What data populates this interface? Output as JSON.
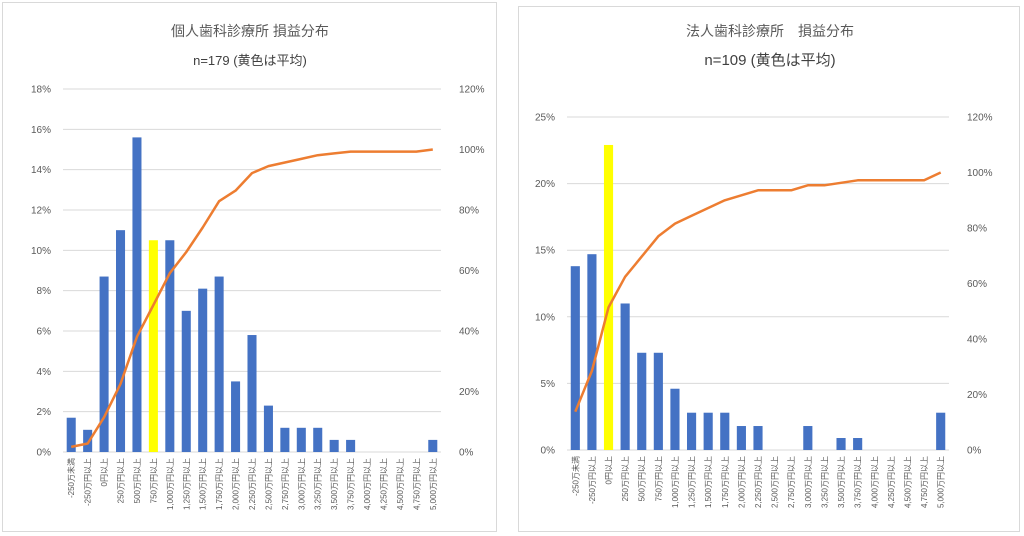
{
  "chart_data": [
    {
      "type": "bar",
      "title": "個人歯科診療所 損益分布",
      "subtitle": "n=179 (黄色は平均)",
      "categories": [
        "-250万未満",
        "-250万円以上",
        "0円以上",
        "250万円以上",
        "500万円以上",
        "750万円以上",
        "1,000万円以上",
        "1,250万円以上",
        "1,500万円以上",
        "1,750万円以上",
        "2,000万円以上",
        "2,250万円以上",
        "2,500万円以上",
        "2,750万円以上",
        "3,000万円以上",
        "3,250万円以上",
        "3,500万円以上",
        "3,750万円以上",
        "4,000万円以上",
        "4,250万円以上",
        "4,500万円以上",
        "4,750万円以上",
        "5,000万円以上"
      ],
      "series": [
        {
          "kind": "bar",
          "values": [
            1.7,
            1.1,
            8.7,
            11.0,
            15.6,
            10.5,
            10.5,
            7.0,
            8.1,
            8.7,
            3.5,
            5.8,
            2.3,
            1.2,
            1.2,
            1.2,
            0.6,
            0.6,
            0,
            0,
            0,
            0,
            0.6
          ]
        },
        {
          "kind": "line",
          "axis": "right",
          "values": [
            1.7,
            2.8,
            11.5,
            22.5,
            38.1,
            48.6,
            59.1,
            66.1,
            74.2,
            82.9,
            86.4,
            92.2,
            94.5,
            95.7,
            96.9,
            98.1,
            98.7,
            99.3,
            99.3,
            99.3,
            99.3,
            99.3,
            100
          ]
        }
      ],
      "highlight_index": 5,
      "ylim": [
        0,
        18
      ],
      "y_ticks": [
        "0%",
        "2%",
        "4%",
        "6%",
        "8%",
        "10%",
        "12%",
        "14%",
        "16%",
        "18%"
      ],
      "y2lim": [
        0,
        120
      ],
      "y2_ticks": [
        "0%",
        "20%",
        "40%",
        "60%",
        "80%",
        "100%",
        "120%"
      ],
      "colors": {
        "bar": "#4472c4",
        "highlight": "#ffff00",
        "line": "#ed7d31",
        "grid": "#d9d9d9"
      },
      "grid": true
    },
    {
      "type": "bar",
      "title": "法人歯科診療所　損益分布",
      "subtitle": "n=109 (黄色は平均)",
      "categories": [
        "-250万未満",
        "-250万円以上",
        "0円以上",
        "250万円以上",
        "500万円以上",
        "750万円以上",
        "1,000万円以上",
        "1,250万円以上",
        "1,500万円以上",
        "1,750万円以上",
        "2,000万円以上",
        "2,250万円以上",
        "2,500万円以上",
        "2,750万円以上",
        "3,000万円以上",
        "3,250万円以上",
        "3,500万円以上",
        "3,750万円以上",
        "4,000万円以上",
        "4,250万円以上",
        "4,500万円以上",
        "4,750万円以上",
        "5,000万円以上"
      ],
      "series": [
        {
          "kind": "bar",
          "values": [
            13.8,
            14.7,
            22.9,
            11.0,
            7.3,
            7.3,
            4.6,
            2.8,
            2.8,
            2.8,
            1.8,
            1.8,
            0,
            0,
            1.8,
            0,
            0.9,
            0.9,
            0,
            0,
            0,
            0,
            2.8
          ]
        },
        {
          "kind": "line",
          "axis": "right",
          "values": [
            13.8,
            28.5,
            51.4,
            62.4,
            69.7,
            77.0,
            81.6,
            84.4,
            87.2,
            90.0,
            91.8,
            93.6,
            93.6,
            93.6,
            95.4,
            95.4,
            96.3,
            97.2,
            97.2,
            97.2,
            97.2,
            97.2,
            100
          ]
        }
      ],
      "highlight_index": 2,
      "ylim": [
        0,
        25
      ],
      "y_ticks": [
        "0%",
        "5%",
        "10%",
        "15%",
        "20%",
        "25%"
      ],
      "y2lim": [
        0,
        120
      ],
      "y2_ticks": [
        "0%",
        "20%",
        "40%",
        "60%",
        "80%",
        "100%",
        "120%"
      ],
      "colors": {
        "bar": "#4472c4",
        "highlight": "#ffff00",
        "line": "#ed7d31",
        "grid": "#d9d9d9"
      },
      "grid": true
    }
  ]
}
